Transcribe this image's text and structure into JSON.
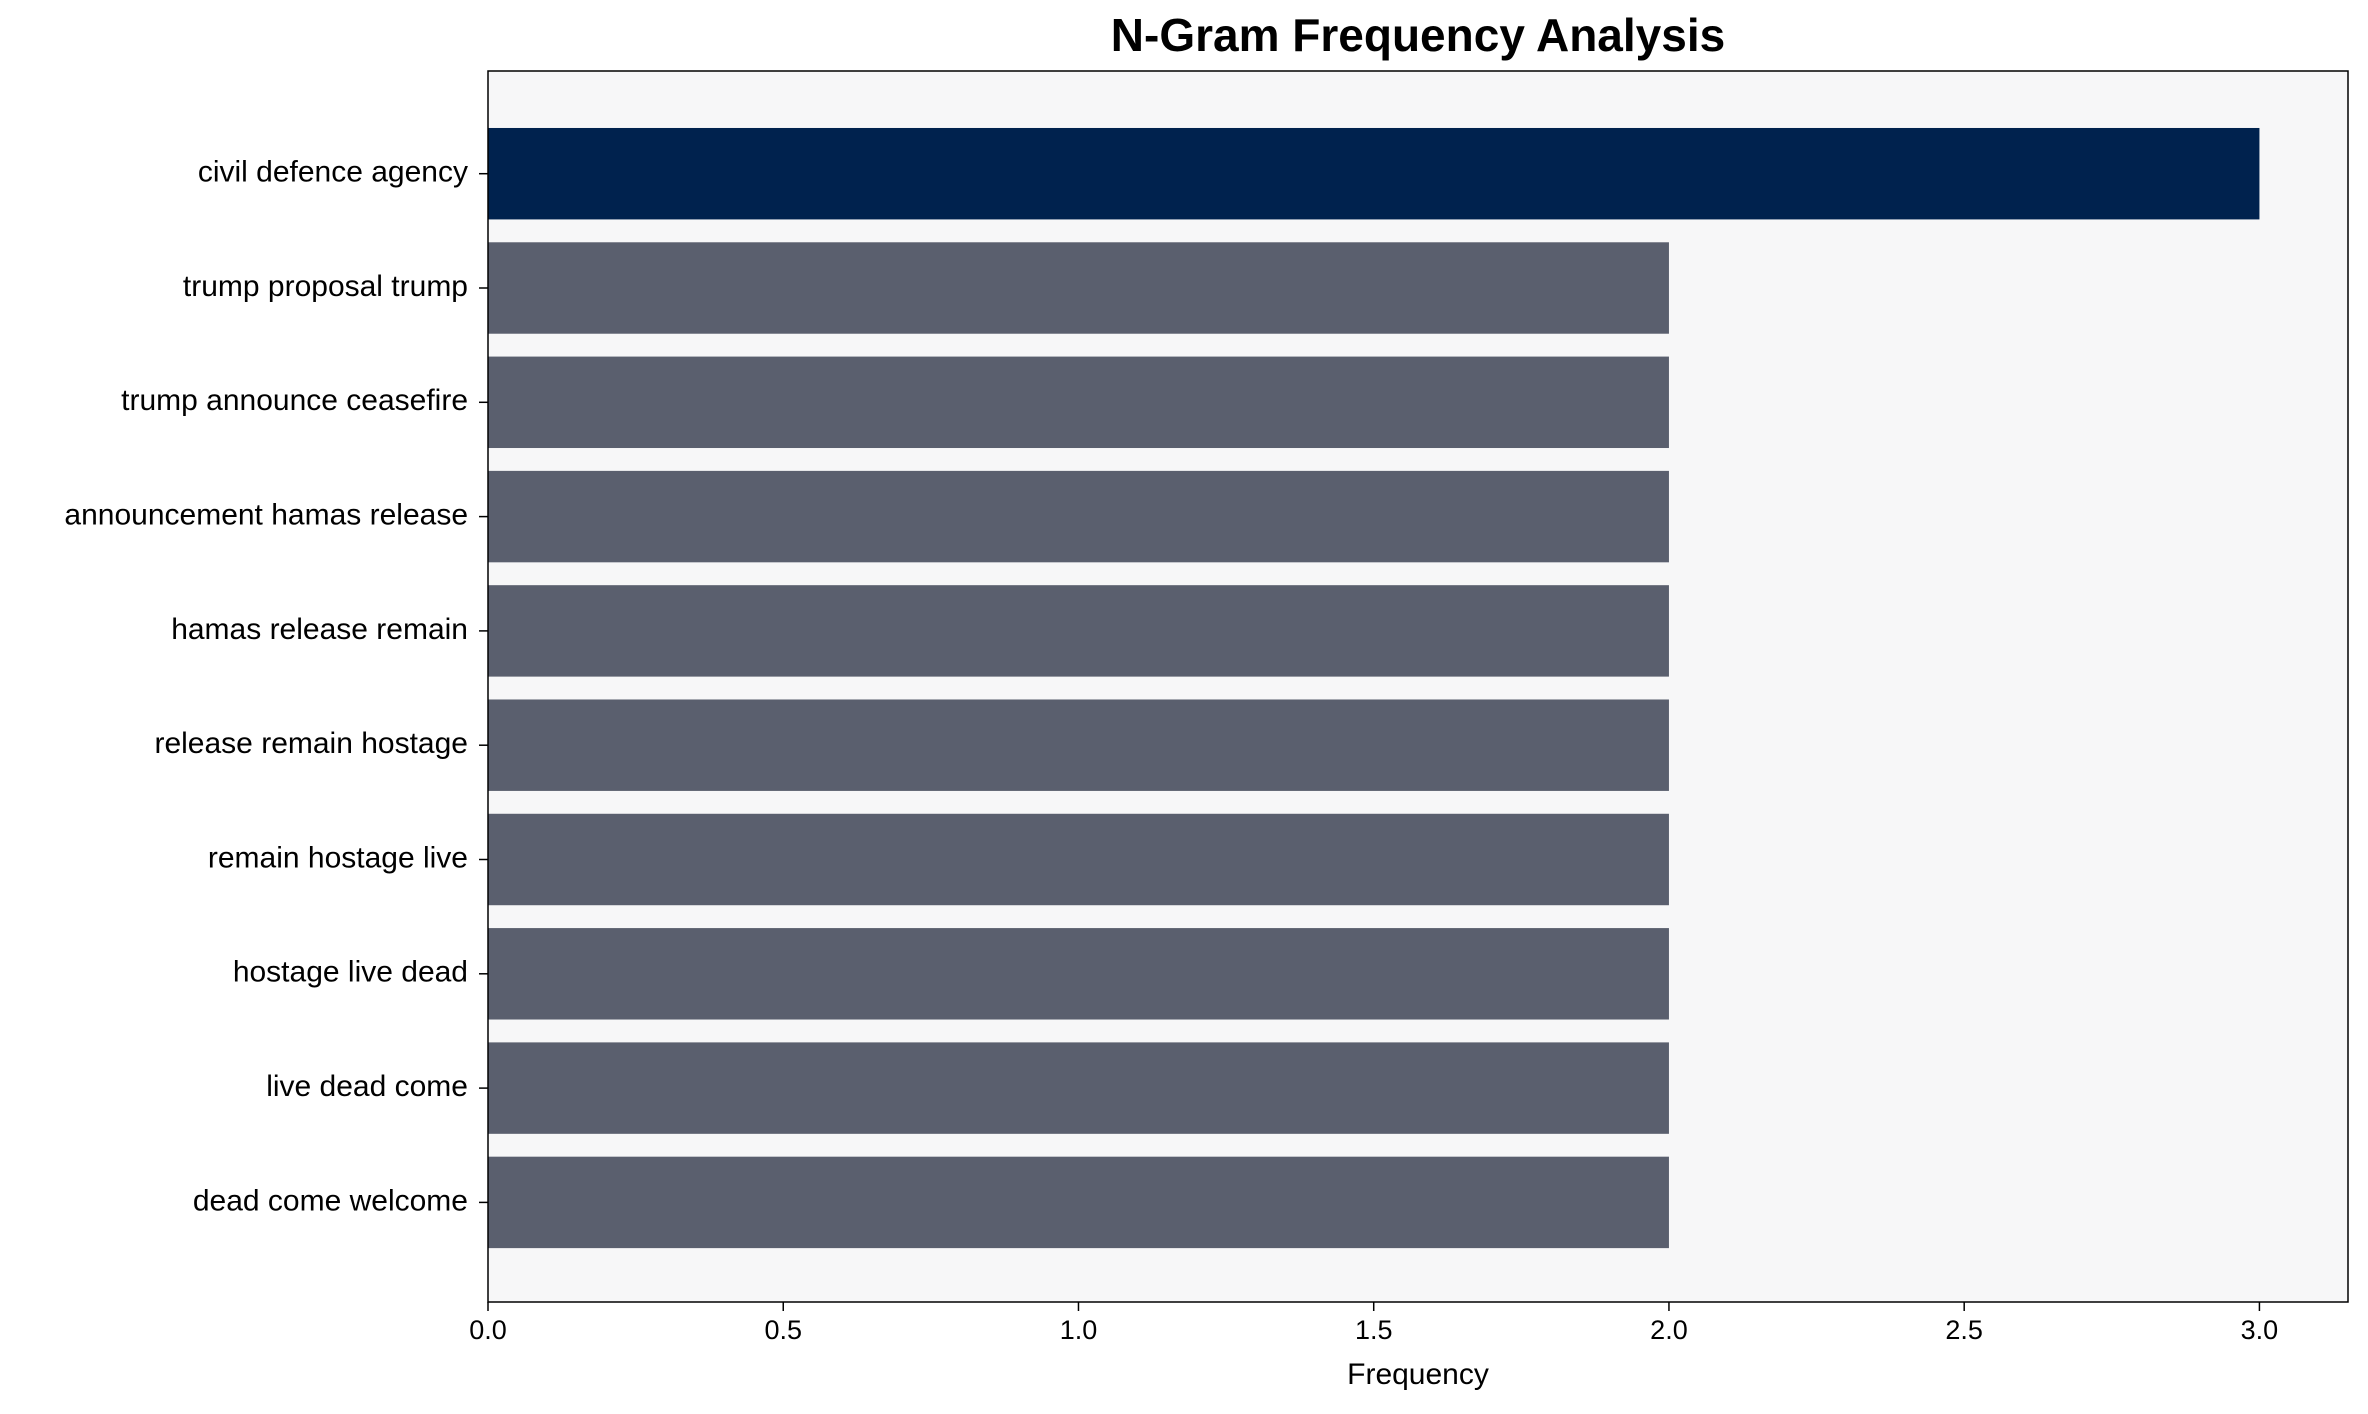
{
  "chart_data": {
    "type": "barh",
    "title": "N-Gram Frequency Analysis",
    "x_label": "Frequency",
    "categories": [
      "civil defence agency",
      "trump proposal trump",
      "trump announce ceasefire",
      "announcement hamas release",
      "hamas release remain",
      "release remain hostage",
      "remain hostage live",
      "hostage live dead",
      "live dead come",
      "dead come welcome"
    ],
    "values": [
      3,
      2,
      2,
      2,
      2,
      2,
      2,
      2,
      2,
      2
    ],
    "colors": [
      "#00224e",
      "#5a5f6e",
      "#5a5f6e",
      "#5a5f6e",
      "#5a5f6e",
      "#5a5f6e",
      "#5a5f6e",
      "#5a5f6e",
      "#5a5f6e",
      "#5a5f6e"
    ],
    "xlim": [
      0,
      3.15
    ],
    "xticks": [
      {
        "value": 0,
        "label": "0.0"
      },
      0.5,
      {
        "value": 1,
        "label": "1.0"
      },
      1.5,
      {
        "value": 2,
        "label": "2.0"
      },
      2.5,
      {
        "value": 3,
        "label": "3.0"
      }
    ],
    "grid": false
  }
}
